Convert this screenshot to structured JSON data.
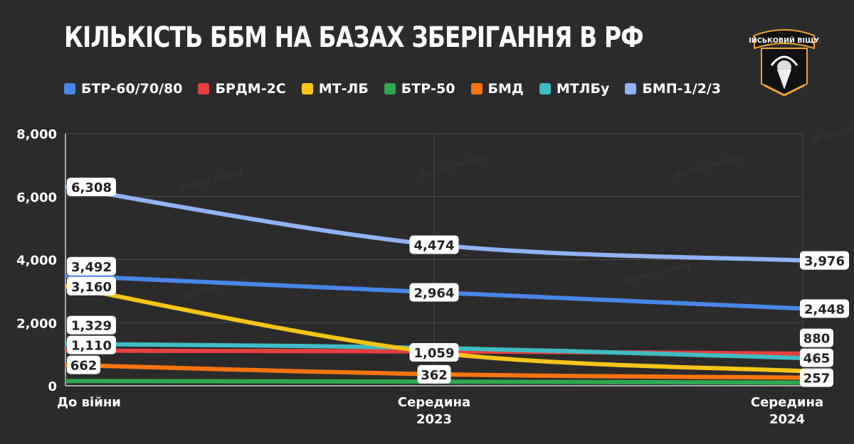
{
  "chart_data": {
    "type": "line",
    "title": "КІЛЬКІСТЬ ББМ НА БАЗАХ ЗБЕРІГАННЯ В РФ",
    "categories": [
      "До війни",
      "Середина 2023",
      "Середина 2024"
    ],
    "ylim": [
      0,
      8000
    ],
    "yticks": [
      "0",
      "2,000",
      "4,000",
      "6,000",
      "8,000"
    ],
    "grid": true,
    "legend": "top",
    "series": [
      {
        "name": "БТР-60/70/80",
        "color": "#4a86e8",
        "values": [
          3492,
          2964,
          2448
        ],
        "labels": [
          "3,492",
          "2,964",
          "2,448"
        ]
      },
      {
        "name": "БРДМ-2С",
        "color": "#e84040",
        "values": [
          1110,
          1090,
          1020
        ],
        "labels": [
          "1,110",
          null,
          null
        ]
      },
      {
        "name": "МТ-ЛБ",
        "color": "#f5c518",
        "values": [
          3160,
          1059,
          465
        ],
        "labels": [
          "3,160",
          "1,059",
          "465"
        ]
      },
      {
        "name": "БТР-50",
        "color": "#2fa84f",
        "values": [
          150,
          130,
          100
        ],
        "labels": [
          null,
          null,
          null
        ]
      },
      {
        "name": "БМД",
        "color": "#ff7410",
        "values": [
          662,
          362,
          257
        ],
        "labels": [
          "662",
          "362",
          "257"
        ]
      },
      {
        "name": "МТЛБу",
        "color": "#3fbcc4",
        "values": [
          1329,
          1200,
          880
        ],
        "labels": [
          "1,329",
          null,
          "880"
        ]
      },
      {
        "name": "БМП-1/2/3",
        "color": "#8fb3f5",
        "values": [
          6308,
          4474,
          3976
        ],
        "labels": [
          "6,308",
          "4,474",
          "3,976"
        ]
      }
    ]
  },
  "logo": {
    "text": "ВІЙСЬКОВИЙ ВІЩУН"
  },
  "watermark": "@vishun_military"
}
